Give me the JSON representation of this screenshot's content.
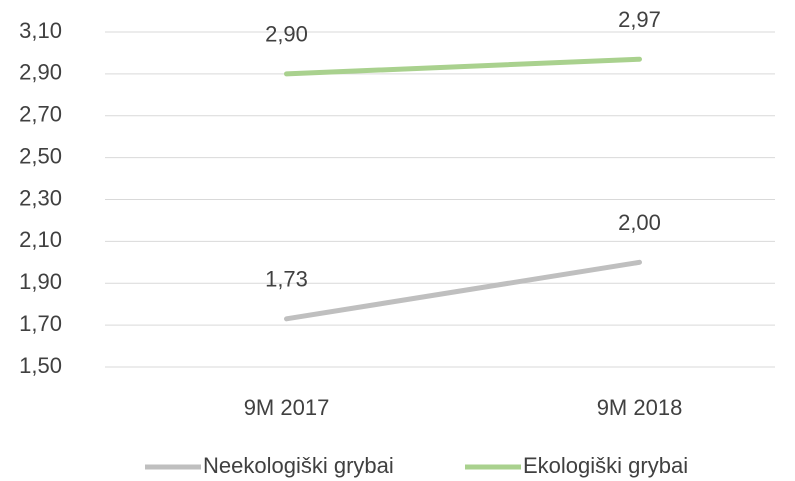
{
  "chart_data": {
    "type": "line",
    "categories": [
      "9M 2017",
      "9M 2018"
    ],
    "series": [
      {
        "name": "Neekologiški grybai",
        "color": "#bfbfbf",
        "values": [
          1.73,
          2.0
        ],
        "value_labels": [
          "1,73",
          "2,00"
        ]
      },
      {
        "name": "Ekologiški grybai",
        "color": "#a9d18e",
        "values": [
          2.9,
          2.97
        ],
        "value_labels": [
          "2,90",
          "2,97"
        ]
      }
    ],
    "ylim": [
      1.5,
      3.1
    ],
    "yticks": [
      {
        "value": 1.5,
        "label": "1,50"
      },
      {
        "value": 1.7,
        "label": "1,70"
      },
      {
        "value": 1.9,
        "label": "1,90"
      },
      {
        "value": 2.1,
        "label": "2,10"
      },
      {
        "value": 2.3,
        "label": "2,30"
      },
      {
        "value": 2.5,
        "label": "2,50"
      },
      {
        "value": 2.7,
        "label": "2,70"
      },
      {
        "value": 2.9,
        "label": "2,90"
      },
      {
        "value": 3.1,
        "label": "3,10"
      }
    ],
    "grid": true,
    "legend": "bottom"
  }
}
